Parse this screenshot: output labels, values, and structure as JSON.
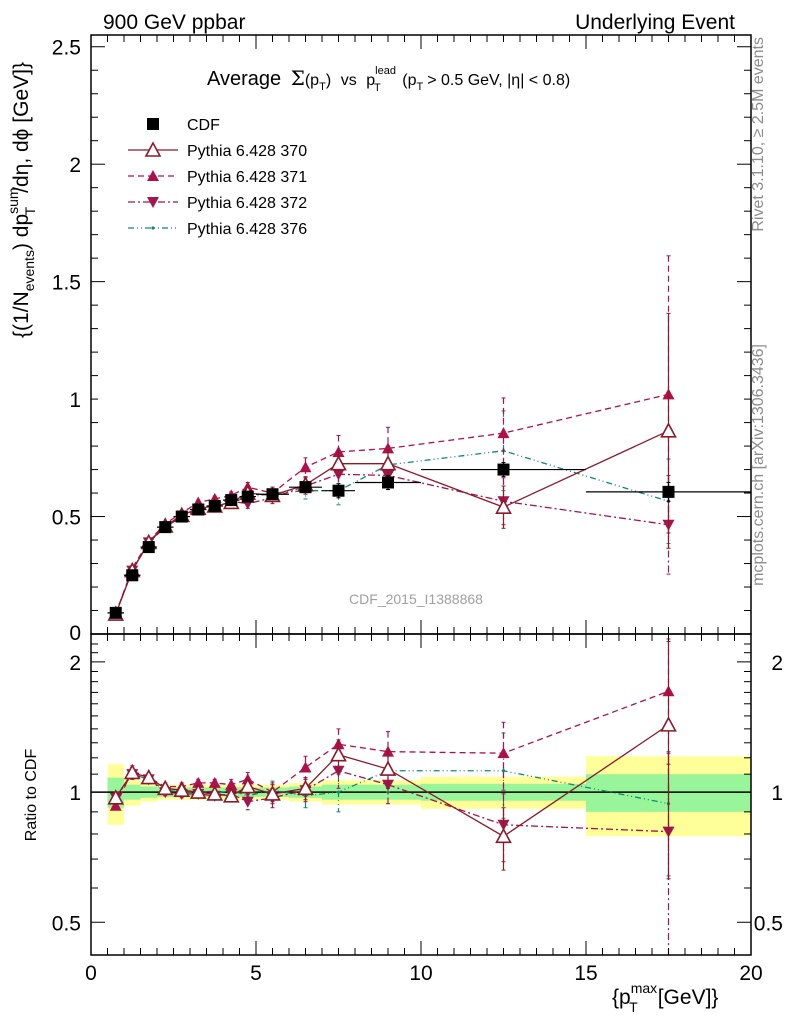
{
  "header": {
    "left": "900 GeV ppbar",
    "right": "Underlying Event"
  },
  "title": {
    "prefix": "Average",
    "sigma": "Σ",
    "pt_open": "(p",
    "pt_sub": "T",
    "pt_close": ")",
    "vs": "vs",
    "p": "p",
    "sup": "lead",
    "sub": "T",
    "cut": "(p",
    "cut_sub": "T",
    "cut_rest": "> 0.5 GeV, |η| < 0.8)"
  },
  "side_labels": {
    "rivet": "Rivet 3.1.10, ≥ 2.5M events",
    "mcplots": "mcplots.cern.ch [arXiv:1306.3436]"
  },
  "watermark": "CDF_2015_I1388868",
  "y_label_main": {
    "a": "{(1/N",
    "a_sub": "events",
    "b": ") dp",
    "b_sup": "sum",
    "b_sub": "T",
    "c": "/dη, dϕ [GeV]}"
  },
  "y_label_ratio": "Ratio to CDF",
  "x_label": {
    "a": "{p",
    "a_sup": "max",
    "a_sub": "T",
    "b": "[GeV]}"
  },
  "legend": [
    {
      "label": "CDF",
      "key": "cdf"
    },
    {
      "label": "Pythia 6.428 370",
      "key": "p370"
    },
    {
      "label": "Pythia 6.428 371",
      "key": "p371"
    },
    {
      "label": "Pythia 6.428 372",
      "key": "p372"
    },
    {
      "label": "Pythia 6.428 376",
      "key": "p376"
    }
  ],
  "colors": {
    "data": "#000000",
    "p370": "#8b1a2b",
    "p371": "#b0104a",
    "p372": "#a3154f",
    "p376": "#108a6e",
    "band_inner": "#99f599",
    "band_outer": "#ffff99"
  },
  "chart_data": [
    {
      "type": "scatter",
      "panel": "main",
      "xlim": [
        0,
        20
      ],
      "ylim": [
        0,
        2.55
      ],
      "yticks": [
        0.5,
        1,
        1.5,
        2,
        2.5
      ],
      "ytick_labels": [
        "0.5",
        "1",
        "1.5",
        "2",
        "2.5"
      ],
      "y0_label": "0",
      "x": [
        0.75,
        1.25,
        1.75,
        2.25,
        2.75,
        3.25,
        3.75,
        4.25,
        4.75,
        5.5,
        6.5,
        7.5,
        9.0,
        12.5,
        17.5
      ],
      "x_err": [
        0.25,
        0.25,
        0.25,
        0.25,
        0.25,
        0.25,
        0.25,
        0.25,
        0.25,
        0.5,
        0.5,
        0.5,
        1.0,
        2.5,
        2.5
      ],
      "series": [
        {
          "name": "CDF",
          "key": "cdf",
          "values": [
            0.09,
            0.25,
            0.37,
            0.455,
            0.5,
            0.53,
            0.545,
            0.57,
            0.585,
            0.595,
            0.625,
            0.61,
            0.645,
            0.7,
            0.605
          ],
          "errors": [
            0.005,
            0.01,
            0.01,
            0.01,
            0.01,
            0.01,
            0.01,
            0.012,
            0.015,
            0.015,
            0.02,
            0.03,
            0.03,
            0.03,
            0.04
          ]
        },
        {
          "name": "Pythia 6.428 370",
          "key": "p370",
          "values": [
            0.085,
            0.27,
            0.39,
            0.46,
            0.505,
            0.535,
            0.545,
            0.56,
            0.6,
            0.59,
            0.635,
            0.725,
            0.725,
            0.54,
            0.865
          ],
          "errors": [
            0.003,
            0.005,
            0.006,
            0.008,
            0.008,
            0.01,
            0.01,
            0.015,
            0.02,
            0.025,
            0.03,
            0.05,
            0.06,
            0.09,
            0.5
          ]
        },
        {
          "name": "Pythia 6.428 371",
          "key": "p371",
          "values": [
            0.085,
            0.28,
            0.395,
            0.47,
            0.515,
            0.56,
            0.575,
            0.59,
            0.625,
            0.6,
            0.71,
            0.775,
            0.79,
            0.855,
            1.02
          ],
          "errors": [
            0.003,
            0.005,
            0.006,
            0.008,
            0.01,
            0.01,
            0.012,
            0.015,
            0.02,
            0.025,
            0.04,
            0.07,
            0.09,
            0.15,
            0.59
          ]
        },
        {
          "name": "Pythia 6.428 372",
          "key": "p372",
          "values": [
            0.085,
            0.27,
            0.39,
            0.455,
            0.5,
            0.53,
            0.54,
            0.565,
            0.555,
            0.58,
            0.63,
            0.68,
            0.675,
            0.565,
            0.465
          ],
          "errors": [
            0.003,
            0.005,
            0.006,
            0.008,
            0.01,
            0.01,
            0.012,
            0.015,
            0.02,
            0.025,
            0.035,
            0.06,
            0.06,
            0.1,
            0.21
          ]
        },
        {
          "name": "Pythia 6.428 376",
          "key": "p376",
          "values": [
            0.09,
            0.27,
            0.395,
            0.46,
            0.505,
            0.535,
            0.55,
            0.575,
            0.58,
            0.6,
            0.61,
            0.61,
            0.72,
            0.78,
            0.565
          ],
          "errors": [
            0.003,
            0.005,
            0.006,
            0.008,
            0.01,
            0.01,
            0.012,
            0.015,
            0.02,
            0.025,
            0.035,
            0.06,
            0.08,
            0.17,
            0.18
          ]
        }
      ]
    },
    {
      "type": "scatter",
      "panel": "ratio",
      "xlim": [
        0,
        20
      ],
      "ylim": [
        0.42,
        2.32
      ],
      "yscale": "log",
      "yticks": [
        0.5,
        1,
        2
      ],
      "ytick_labels": [
        "0.5",
        "1",
        "2"
      ],
      "xticks": [
        0,
        5,
        10,
        15,
        20
      ],
      "xtick_labels": [
        "0",
        "5",
        "10",
        "15",
        "20"
      ],
      "band_edges": [
        0.5,
        1.0,
        1.5,
        2.0,
        2.5,
        3.0,
        3.5,
        4.0,
        4.5,
        5.0,
        6.0,
        7.0,
        8.0,
        10.0,
        15.0,
        20.0
      ],
      "band_inner": [
        0.08,
        0.04,
        0.03,
        0.025,
        0.025,
        0.025,
        0.025,
        0.025,
        0.025,
        0.025,
        0.03,
        0.04,
        0.04,
        0.045,
        0.1
      ],
      "band_outer": [
        0.16,
        0.07,
        0.05,
        0.04,
        0.04,
        0.04,
        0.04,
        0.04,
        0.04,
        0.04,
        0.05,
        0.065,
        0.065,
        0.085,
        0.21
      ],
      "series": [
        {
          "name": "Pythia 6.428 370",
          "key": "p370",
          "values": [
            0.97,
            1.11,
            1.08,
            1.02,
            1.01,
            1.0,
            0.99,
            0.98,
            1.03,
            0.99,
            1.02,
            1.22,
            1.13,
            0.79,
            1.43
          ],
          "errors": [
            0.02,
            0.03,
            0.02,
            0.02,
            0.02,
            0.02,
            0.02,
            0.03,
            0.04,
            0.05,
            0.06,
            0.1,
            0.11,
            0.13,
            0.8
          ]
        },
        {
          "name": "Pythia 6.428 371",
          "key": "p371",
          "values": [
            0.93,
            1.12,
            1.08,
            1.03,
            1.03,
            1.05,
            1.05,
            1.04,
            1.07,
            1.0,
            1.14,
            1.29,
            1.24,
            1.23,
            1.71
          ],
          "errors": [
            0.02,
            0.03,
            0.02,
            0.02,
            0.02,
            0.02,
            0.02,
            0.03,
            0.04,
            0.05,
            0.07,
            0.11,
            0.14,
            0.22,
            0.55
          ]
        },
        {
          "name": "Pythia 6.428 372",
          "key": "p372",
          "values": [
            0.97,
            1.1,
            1.07,
            1.0,
            0.99,
            0.99,
            0.98,
            0.99,
            0.95,
            0.97,
            1.01,
            1.12,
            1.04,
            0.84,
            0.81
          ],
          "errors": [
            0.02,
            0.03,
            0.02,
            0.02,
            0.02,
            0.02,
            0.02,
            0.03,
            0.04,
            0.05,
            0.06,
            0.1,
            0.1,
            0.15,
            0.42
          ]
        },
        {
          "name": "Pythia 6.428 376",
          "key": "p376",
          "values": [
            0.98,
            1.1,
            1.07,
            1.01,
            1.0,
            1.0,
            0.99,
            1.01,
            0.98,
            1.01,
            0.98,
            1.0,
            1.12,
            1.12,
            0.94
          ],
          "errors": [
            0.02,
            0.03,
            0.02,
            0.02,
            0.02,
            0.02,
            0.02,
            0.03,
            0.04,
            0.05,
            0.06,
            0.1,
            0.12,
            0.25,
            0.3
          ]
        }
      ]
    }
  ]
}
